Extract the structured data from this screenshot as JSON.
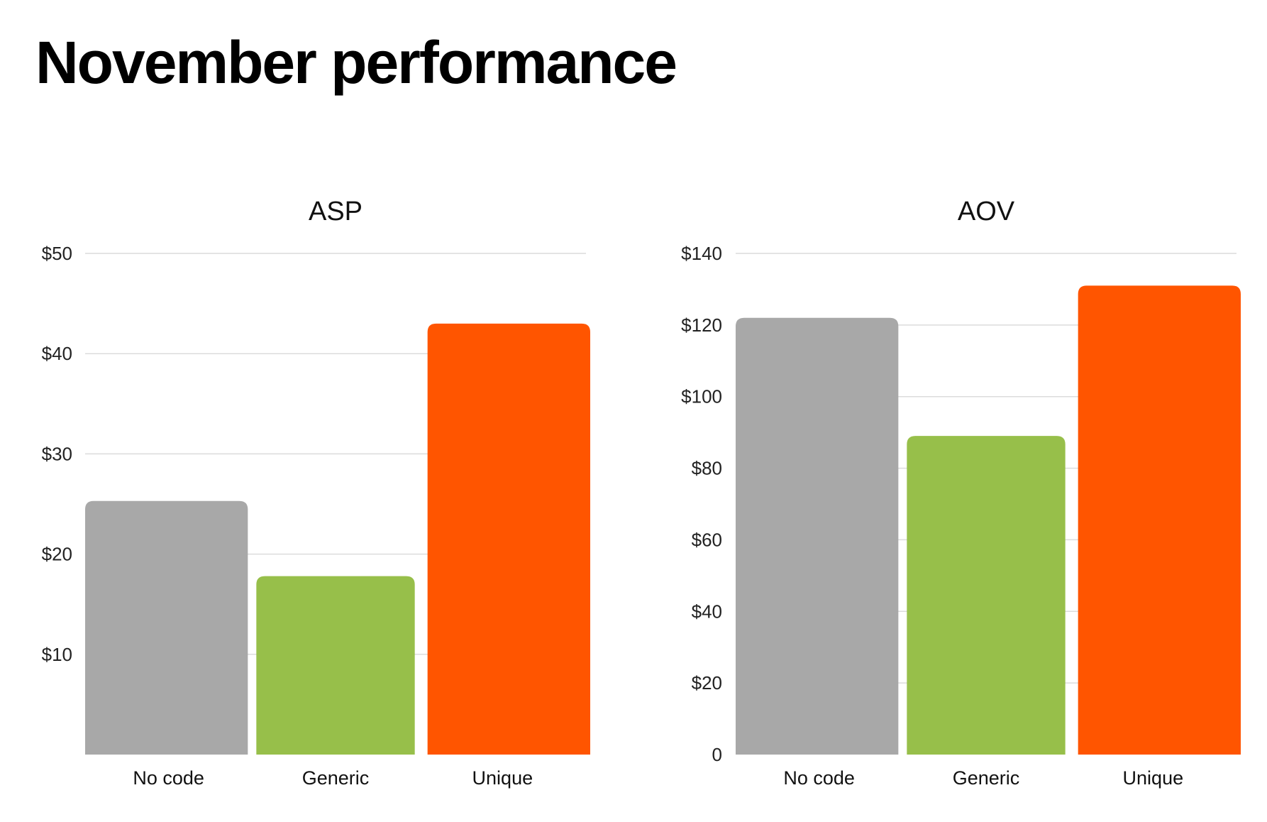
{
  "page": {
    "title": "November performance"
  },
  "chart_data": [
    {
      "type": "bar",
      "title": "ASP",
      "xlabel": "",
      "ylabel": "",
      "categories": [
        "No code",
        "Generic",
        "Unique"
      ],
      "values": [
        25.3,
        17.8,
        43.0
      ],
      "ylim": [
        0,
        50
      ],
      "yticks": [
        10,
        20,
        30,
        40,
        50
      ],
      "ytick_labels": [
        "$10",
        "$20",
        "$30",
        "$40",
        "$50"
      ],
      "colors": [
        "#a8a8a8",
        "#97bf4a",
        "#ff5500"
      ],
      "grid": true
    },
    {
      "type": "bar",
      "title": "AOV",
      "xlabel": "",
      "ylabel": "",
      "categories": [
        "No code",
        "Generic",
        "Unique"
      ],
      "values": [
        122,
        89,
        131
      ],
      "ylim": [
        0,
        140
      ],
      "yticks": [
        0,
        20,
        40,
        60,
        80,
        100,
        120,
        140
      ],
      "ytick_labels": [
        "0",
        "$20",
        "$40",
        "$60",
        "$80",
        "$100",
        "$120",
        "$140"
      ],
      "colors": [
        "#a8a8a8",
        "#97bf4a",
        "#ff5500"
      ],
      "grid": true
    }
  ]
}
